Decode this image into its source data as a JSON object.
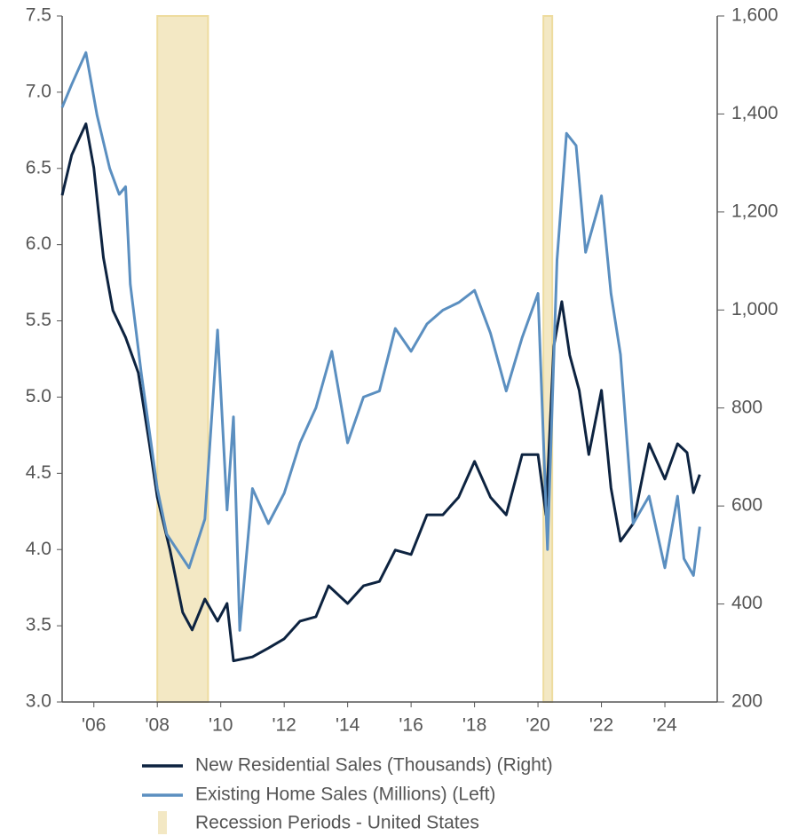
{
  "chart_data": {
    "type": "line",
    "xlim": [
      2005,
      2025.65
    ],
    "xticks": [
      {
        "value": 2006,
        "label": "'06"
      },
      {
        "value": 2008,
        "label": "'08"
      },
      {
        "value": 2010,
        "label": "'10"
      },
      {
        "value": 2012,
        "label": "'12"
      },
      {
        "value": 2014,
        "label": "'14"
      },
      {
        "value": 2016,
        "label": "'16"
      },
      {
        "value": 2018,
        "label": "'18"
      },
      {
        "value": 2020,
        "label": "'20"
      },
      {
        "value": 2022,
        "label": "'22"
      },
      {
        "value": 2024,
        "label": "'24"
      }
    ],
    "ylim": [
      3.0,
      7.5
    ],
    "yticks": [
      {
        "value": 3.0,
        "label": "3.0"
      },
      3.5,
      {
        "value": 4.0,
        "label": "4.0"
      },
      4.5,
      {
        "value": 5.0,
        "label": "5.0"
      },
      5.5,
      {
        "value": 6.0,
        "label": "6.0"
      },
      6.5,
      {
        "value": 7.0,
        "label": "7.0"
      },
      7.5
    ],
    "y2lim": [
      200,
      1600
    ],
    "y2ticks": [
      200,
      400,
      600,
      800,
      {
        "value": 1000,
        "label": "1,000"
      },
      {
        "value": 1200,
        "label": "1,200"
      },
      {
        "value": 1400,
        "label": "1,400"
      },
      {
        "value": 1600,
        "label": "1,600"
      }
    ],
    "series": [
      {
        "name": "New Residential Sales (Thousands) (Right)",
        "color": "#0d2340",
        "axis": "y2",
        "x": [
          2005.0,
          2005.3,
          2005.75,
          2006.0,
          2006.3,
          2006.6,
          2007.0,
          2007.4,
          2007.75,
          2008.0,
          2008.4,
          2008.8,
          2009.1,
          2009.5,
          2009.9,
          2010.2,
          2010.4,
          2011.0,
          2011.5,
          2012.0,
          2012.5,
          2013.0,
          2013.4,
          2014.0,
          2014.5,
          2015.0,
          2015.5,
          2016.0,
          2016.5,
          2017.0,
          2017.5,
          2018.0,
          2018.5,
          2019.0,
          2019.5,
          2020.0,
          2020.25,
          2020.5,
          2020.75,
          2021.0,
          2021.3,
          2021.6,
          2022.0,
          2022.3,
          2022.6,
          2023.0,
          2023.5,
          2024.0,
          2024.4,
          2024.7,
          2024.9,
          2025.1
        ],
        "values": [
          1234,
          1316,
          1380,
          1290,
          1107,
          999,
          944,
          872,
          727,
          618,
          510,
          383,
          347,
          410,
          365,
          401,
          284,
          292,
          310,
          329,
          365,
          374,
          437,
          401,
          437,
          446,
          510,
          501,
          582,
          582,
          618,
          691,
          618,
          582,
          705,
          705,
          582,
          926,
          1017,
          908,
          836,
          705,
          836,
          637,
          528,
          564,
          727,
          655,
          727,
          709,
          627,
          664
        ]
      },
      {
        "name": "Existing Home Sales (Millions) (Left)",
        "color": "#5b8fc0",
        "axis": "y",
        "x": [
          2005.0,
          2005.3,
          2005.75,
          2006.1,
          2006.5,
          2006.8,
          2007.0,
          2007.15,
          2007.5,
          2007.8,
          2008.0,
          2008.3,
          2009.0,
          2009.5,
          2009.9,
          2010.2,
          2010.4,
          2010.6,
          2011.0,
          2011.5,
          2012.0,
          2012.5,
          2013.0,
          2013.5,
          2014.0,
          2014.5,
          2015.0,
          2015.5,
          2016.0,
          2016.5,
          2017.0,
          2017.5,
          2018.0,
          2018.5,
          2019.0,
          2019.5,
          2020.0,
          2020.3,
          2020.6,
          2020.9,
          2021.2,
          2021.5,
          2022.0,
          2022.3,
          2022.6,
          2023.0,
          2023.5,
          2024.0,
          2024.4,
          2024.6,
          2024.9,
          2025.1
        ],
        "values": [
          6.9,
          7.05,
          7.26,
          6.85,
          6.5,
          6.33,
          6.38,
          5.74,
          5.15,
          4.7,
          4.4,
          4.1,
          3.88,
          4.2,
          5.44,
          4.26,
          4.87,
          3.47,
          4.4,
          4.17,
          4.37,
          4.7,
          4.93,
          5.3,
          4.7,
          5.0,
          5.04,
          5.45,
          5.3,
          5.48,
          5.57,
          5.62,
          5.7,
          5.42,
          5.04,
          5.39,
          5.68,
          4.0,
          5.9,
          6.73,
          6.65,
          5.95,
          6.32,
          5.68,
          5.28,
          4.17,
          4.35,
          3.88,
          4.35,
          3.94,
          3.83,
          4.15
        ]
      }
    ],
    "recessions": {
      "name": "Recession Periods - United States",
      "color": "#f3e8c4",
      "periods": [
        [
          2008.0,
          2009.6
        ],
        [
          2020.17,
          2020.45
        ]
      ]
    }
  }
}
